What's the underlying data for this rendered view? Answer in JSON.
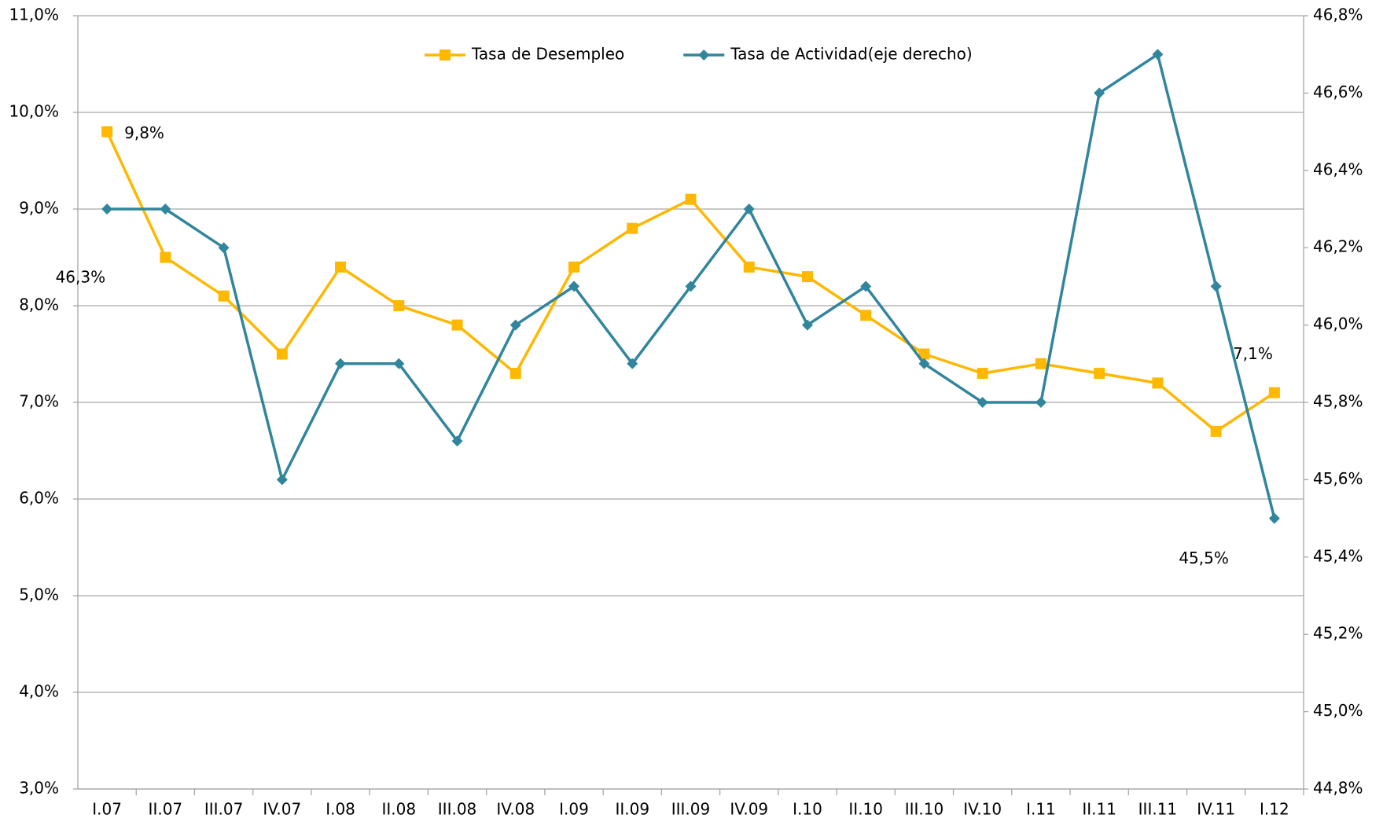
{
  "chart_data": {
    "type": "line",
    "categories": [
      "I.07",
      "II.07",
      "III.07",
      "IV.07",
      "I.08",
      "II.08",
      "III.08",
      "IV.08",
      "I.09",
      "II.09",
      "III.09",
      "IV.09",
      "I.10",
      "II.10",
      "III.10",
      "IV.10",
      "I.11",
      "II.11",
      "III.11",
      "IV.11",
      "I.12"
    ],
    "series": [
      {
        "name": "Tasa de Desempleo",
        "color": "#FFB800",
        "marker": "square",
        "values": [
          9.8,
          8.5,
          8.1,
          7.5,
          8.4,
          8.0,
          7.8,
          7.3,
          8.4,
          8.8,
          9.1,
          8.4,
          8.3,
          7.9,
          7.5,
          7.3,
          7.4,
          7.3,
          7.2,
          6.7,
          7.1
        ],
        "value_labels": [
          "9,8%",
          null,
          null,
          null,
          null,
          null,
          null,
          null,
          null,
          null,
          null,
          null,
          null,
          null,
          null,
          null,
          null,
          null,
          null,
          null,
          "7,1%"
        ]
      },
      {
        "name": "Tasa de Actividad(eje derecho)",
        "color": "#31859C",
        "marker": "diamond",
        "axis": "y2",
        "values": [
          46.3,
          46.3,
          46.2,
          45.6,
          45.9,
          45.9,
          45.7,
          46.0,
          46.1,
          45.9,
          46.1,
          46.3,
          46.0,
          46.1,
          45.9,
          45.8,
          45.8,
          46.6,
          46.7,
          46.1,
          45.5
        ],
        "value_labels": [
          "46,3%",
          null,
          null,
          null,
          null,
          null,
          null,
          null,
          null,
          null,
          null,
          null,
          null,
          null,
          null,
          null,
          null,
          null,
          null,
          null,
          "45,5%"
        ]
      }
    ],
    "ylim": [
      3,
      11
    ],
    "yticks": [
      {
        "value": 3,
        "label": "3,0%"
      },
      {
        "value": 4,
        "label": "4,0%"
      },
      {
        "value": 5,
        "label": "5,0%"
      },
      {
        "value": 6,
        "label": "6,0%"
      },
      {
        "value": 7,
        "label": "7,0%"
      },
      {
        "value": 8,
        "label": "8,0%"
      },
      {
        "value": 9,
        "label": "9,0%"
      },
      {
        "value": 10,
        "label": "10,0%"
      },
      {
        "value": 11,
        "label": "11,0%"
      }
    ],
    "y2lim": [
      44.8,
      46.8
    ],
    "y2ticks": [
      {
        "value": 44.8,
        "label": "44,8%"
      },
      {
        "value": 45.0,
        "label": "45,0%"
      },
      {
        "value": 45.2,
        "label": "45,2%"
      },
      {
        "value": 45.4,
        "label": "45,4%"
      },
      {
        "value": 45.6,
        "label": "45,6%"
      },
      {
        "value": 45.8,
        "label": "45,8%"
      },
      {
        "value": 46.0,
        "label": "46,0%"
      },
      {
        "value": 46.2,
        "label": "46,2%"
      },
      {
        "value": 46.4,
        "label": "46,4%"
      },
      {
        "value": 46.6,
        "label": "46,6%"
      },
      {
        "value": 46.8,
        "label": "46,8%"
      }
    ],
    "grid": true,
    "legend": "top"
  }
}
